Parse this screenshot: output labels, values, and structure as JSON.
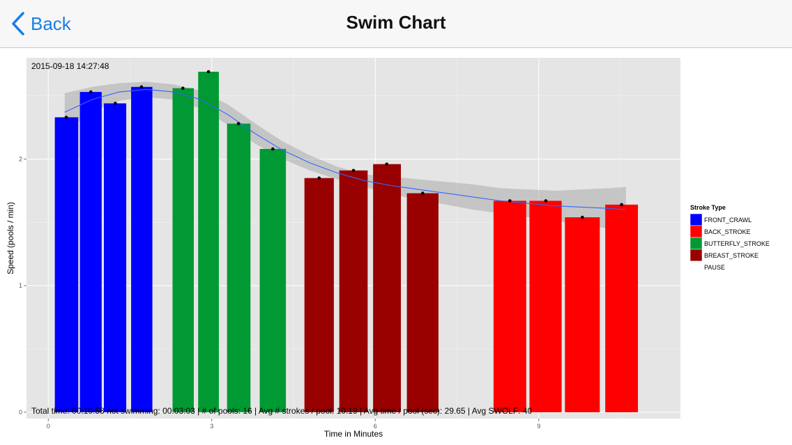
{
  "nav": {
    "back_label": "Back",
    "title": "Swim Chart"
  },
  "colors": {
    "nav_tint": "#1a7ee6",
    "panel_bg": "#e5e5e5",
    "smooth_line": "#3366ff",
    "band": "#999999"
  },
  "chart_data": {
    "type": "bar",
    "timestamp": "2015-09-18 14:27:48",
    "xlabel": "Time in Minutes",
    "ylabel": "Speed (pools / min)",
    "xlim": [
      -0.4,
      11.6
    ],
    "ylim": [
      -0.05,
      2.8
    ],
    "x_ticks": [
      0,
      3,
      6,
      9
    ],
    "y_ticks": [
      0,
      1,
      2
    ],
    "legend": {
      "title": "Stroke Type",
      "position": "right",
      "entries": [
        {
          "label": "FRONT_CRAWL",
          "color": "#0000ff"
        },
        {
          "label": "BACK_STROKE",
          "color": "#ff0000"
        },
        {
          "label": "BUTTERFLY_STROKE",
          "color": "#009933"
        },
        {
          "label": "BREAST_STROKE",
          "color": "#990000"
        },
        {
          "label": "PAUSE",
          "color": "#ffffff"
        }
      ]
    },
    "bars": [
      {
        "start": 0.12,
        "end": 0.55,
        "value": 2.33,
        "stroke": "FRONT_CRAWL"
      },
      {
        "start": 0.58,
        "end": 0.98,
        "value": 2.53,
        "stroke": "FRONT_CRAWL"
      },
      {
        "start": 1.02,
        "end": 1.43,
        "value": 2.44,
        "stroke": "FRONT_CRAWL"
      },
      {
        "start": 1.52,
        "end": 1.91,
        "value": 2.57,
        "stroke": "FRONT_CRAWL"
      },
      {
        "start": 2.28,
        "end": 2.67,
        "value": 2.56,
        "stroke": "BUTTERFLY_STROKE"
      },
      {
        "start": 2.75,
        "end": 3.13,
        "value": 2.69,
        "stroke": "BUTTERFLY_STROKE"
      },
      {
        "start": 3.28,
        "end": 3.71,
        "value": 2.28,
        "stroke": "BUTTERFLY_STROKE"
      },
      {
        "start": 3.88,
        "end": 4.36,
        "value": 2.08,
        "stroke": "BUTTERFLY_STROKE"
      },
      {
        "start": 4.7,
        "end": 5.24,
        "value": 1.85,
        "stroke": "BREAST_STROKE"
      },
      {
        "start": 5.34,
        "end": 5.86,
        "value": 1.91,
        "stroke": "BREAST_STROKE"
      },
      {
        "start": 5.96,
        "end": 6.47,
        "value": 1.96,
        "stroke": "BREAST_STROKE"
      },
      {
        "start": 6.58,
        "end": 7.16,
        "value": 1.73,
        "stroke": "BREAST_STROKE"
      },
      {
        "start": 8.17,
        "end": 8.77,
        "value": 1.67,
        "stroke": "BACK_STROKE"
      },
      {
        "start": 8.83,
        "end": 9.42,
        "value": 1.67,
        "stroke": "BACK_STROKE"
      },
      {
        "start": 9.48,
        "end": 10.12,
        "value": 1.54,
        "stroke": "BACK_STROKE"
      },
      {
        "start": 10.22,
        "end": 10.82,
        "value": 1.64,
        "stroke": "BACK_STROKE"
      }
    ],
    "points": [
      {
        "x": 0.33,
        "y": 2.33
      },
      {
        "x": 0.78,
        "y": 2.53
      },
      {
        "x": 1.23,
        "y": 2.44
      },
      {
        "x": 1.71,
        "y": 2.57
      },
      {
        "x": 2.47,
        "y": 2.56
      },
      {
        "x": 2.94,
        "y": 2.69
      },
      {
        "x": 3.49,
        "y": 2.28
      },
      {
        "x": 4.12,
        "y": 2.08
      },
      {
        "x": 4.97,
        "y": 1.85
      },
      {
        "x": 5.6,
        "y": 1.91
      },
      {
        "x": 6.21,
        "y": 1.96
      },
      {
        "x": 6.87,
        "y": 1.73
      },
      {
        "x": 8.47,
        "y": 1.67
      },
      {
        "x": 9.13,
        "y": 1.67
      },
      {
        "x": 9.8,
        "y": 1.54
      },
      {
        "x": 10.52,
        "y": 1.64
      }
    ],
    "smooth": {
      "x": [
        0.3,
        0.8,
        1.3,
        1.8,
        2.3,
        2.8,
        3.3,
        3.8,
        4.3,
        4.8,
        5.3,
        5.8,
        6.3,
        6.8,
        7.3,
        7.8,
        8.3,
        8.8,
        9.3,
        9.8,
        10.3,
        10.6
      ],
      "y": [
        2.37,
        2.47,
        2.53,
        2.55,
        2.53,
        2.47,
        2.35,
        2.2,
        2.07,
        1.97,
        1.89,
        1.83,
        1.79,
        1.76,
        1.73,
        1.7,
        1.67,
        1.65,
        1.63,
        1.62,
        1.61,
        1.6
      ],
      "ymin": [
        2.22,
        2.37,
        2.46,
        2.49,
        2.47,
        2.4,
        2.27,
        2.12,
        2.0,
        1.91,
        1.84,
        1.78,
        1.72,
        1.68,
        1.64,
        1.6,
        1.57,
        1.54,
        1.51,
        1.48,
        1.45,
        1.42
      ],
      "ymax": [
        2.52,
        2.57,
        2.6,
        2.61,
        2.59,
        2.54,
        2.43,
        2.28,
        2.14,
        2.03,
        1.94,
        1.88,
        1.86,
        1.84,
        1.82,
        1.8,
        1.77,
        1.76,
        1.75,
        1.76,
        1.77,
        1.78
      ]
    },
    "summary": "Total time: 00:10:58 not swimming: 00:03:03  | # of pools: 16  | Avg # strokes / pool: 10.19  | Avg time / pool (sec): 29.65  | Avg SWOLF: 40"
  }
}
